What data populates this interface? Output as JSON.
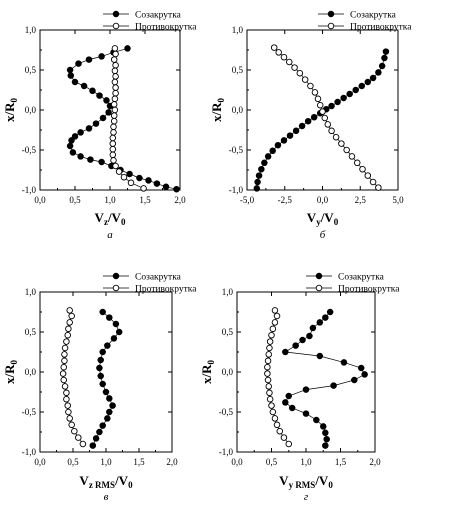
{
  "chart_data": [
    {
      "type": "scatter",
      "panel_letter": "а",
      "xlabel": {
        "main": "V",
        "sub": "z",
        "tail": "/V",
        "tail_sub": "0"
      },
      "ylabel": {
        "main": "x/R",
        "sub": "0"
      },
      "xlim": [
        0,
        2.0
      ],
      "ylim": [
        -1.0,
        1.0
      ],
      "xticks": [
        "0,0",
        "0,5",
        "1,0",
        "1,5",
        "2,0"
      ],
      "xtick_values": [
        0,
        0.5,
        1.0,
        1.5,
        2.0
      ],
      "yticks": [
        "-1,0",
        "-0,5",
        "0,0",
        "0,5",
        "1,0"
      ],
      "ytick_values": [
        -1.0,
        -0.5,
        0.0,
        0.5,
        1.0
      ],
      "legend_position": "top-right",
      "series": [
        {
          "name": "Созакрутка",
          "marker": "filled",
          "points": [
            [
              1.25,
              0.77
            ],
            [
              1.05,
              0.72
            ],
            [
              0.88,
              0.67
            ],
            [
              0.7,
              0.63
            ],
            [
              0.55,
              0.58
            ],
            [
              0.43,
              0.5
            ],
            [
              0.44,
              0.43
            ],
            [
              0.5,
              0.35
            ],
            [
              0.63,
              0.3
            ],
            [
              0.75,
              0.24
            ],
            [
              0.85,
              0.18
            ],
            [
              0.95,
              0.12
            ],
            [
              1.0,
              0.05
            ],
            [
              0.98,
              -0.03
            ],
            [
              0.9,
              -0.1
            ],
            [
              0.8,
              -0.17
            ],
            [
              0.7,
              -0.23
            ],
            [
              0.58,
              -0.28
            ],
            [
              0.5,
              -0.33
            ],
            [
              0.45,
              -0.38
            ],
            [
              0.43,
              -0.45
            ],
            [
              0.47,
              -0.53
            ],
            [
              0.58,
              -0.58
            ],
            [
              0.72,
              -0.62
            ],
            [
              0.88,
              -0.65
            ],
            [
              1.02,
              -0.7
            ],
            [
              1.15,
              -0.75
            ],
            [
              1.28,
              -0.8
            ],
            [
              1.42,
              -0.85
            ],
            [
              1.55,
              -0.88
            ],
            [
              1.67,
              -0.92
            ],
            [
              1.8,
              -0.96
            ],
            [
              1.95,
              -0.99
            ]
          ]
        },
        {
          "name": "Противокрутка",
          "marker": "open",
          "points": [
            [
              1.07,
              0.77
            ],
            [
              1.08,
              0.7
            ],
            [
              1.06,
              0.63
            ],
            [
              1.08,
              0.56
            ],
            [
              1.07,
              0.49
            ],
            [
              1.08,
              0.42
            ],
            [
              1.07,
              0.35
            ],
            [
              1.08,
              0.28
            ],
            [
              1.08,
              0.21
            ],
            [
              1.07,
              0.14
            ],
            [
              1.06,
              0.07
            ],
            [
              1.07,
              0.0
            ],
            [
              1.06,
              -0.07
            ],
            [
              1.06,
              -0.14
            ],
            [
              1.05,
              -0.21
            ],
            [
              1.05,
              -0.28
            ],
            [
              1.04,
              -0.35
            ],
            [
              1.04,
              -0.42
            ],
            [
              1.04,
              -0.49
            ],
            [
              1.04,
              -0.56
            ],
            [
              1.05,
              -0.63
            ],
            [
              1.08,
              -0.7
            ],
            [
              1.13,
              -0.77
            ],
            [
              1.2,
              -0.84
            ],
            [
              1.3,
              -0.91
            ],
            [
              1.48,
              -0.98
            ]
          ]
        }
      ]
    },
    {
      "type": "scatter",
      "panel_letter": "б",
      "xlabel": {
        "main": "V",
        "sub": "y",
        "tail": "/V",
        "tail_sub": "0"
      },
      "ylabel": {
        "main": "x/R",
        "sub": "0"
      },
      "xlim": [
        -5.0,
        5.0
      ],
      "ylim": [
        -1.0,
        1.0
      ],
      "xticks": [
        "-5,0",
        "-2,5",
        "0,0",
        "2,5",
        "5,0"
      ],
      "xtick_values": [
        -5.0,
        -2.5,
        0.0,
        2.5,
        5.0
      ],
      "yticks": [
        "-1,0",
        "-0,5",
        "0,0",
        "0,5",
        "1,0"
      ],
      "ytick_values": [
        -1.0,
        -0.5,
        0.0,
        0.5,
        1.0
      ],
      "legend_position": "top-right",
      "series": [
        {
          "name": "Созакрутка",
          "marker": "filled",
          "points": [
            [
              4.2,
              0.73
            ],
            [
              4.1,
              0.65
            ],
            [
              3.95,
              0.55
            ],
            [
              3.7,
              0.47
            ],
            [
              3.35,
              0.4
            ],
            [
              3.0,
              0.35
            ],
            [
              2.6,
              0.3
            ],
            [
              2.2,
              0.25
            ],
            [
              1.8,
              0.2
            ],
            [
              1.4,
              0.15
            ],
            [
              1.0,
              0.1
            ],
            [
              0.6,
              0.05
            ],
            [
              0.25,
              0.01
            ],
            [
              -0.15,
              -0.04
            ],
            [
              -0.55,
              -0.09
            ],
            [
              -0.95,
              -0.14
            ],
            [
              -1.35,
              -0.2
            ],
            [
              -1.75,
              -0.26
            ],
            [
              -2.15,
              -0.32
            ],
            [
              -2.55,
              -0.38
            ],
            [
              -2.95,
              -0.44
            ],
            [
              -3.3,
              -0.51
            ],
            [
              -3.6,
              -0.58
            ],
            [
              -3.85,
              -0.66
            ],
            [
              -4.05,
              -0.74
            ],
            [
              -4.2,
              -0.82
            ],
            [
              -4.3,
              -0.9
            ],
            [
              -4.35,
              -0.98
            ]
          ]
        },
        {
          "name": "Противокрутка",
          "marker": "open",
          "points": [
            [
              -3.2,
              0.78
            ],
            [
              -2.9,
              0.72
            ],
            [
              -2.55,
              0.66
            ],
            [
              -2.2,
              0.6
            ],
            [
              -1.85,
              0.53
            ],
            [
              -1.5,
              0.46
            ],
            [
              -1.15,
              0.38
            ],
            [
              -0.8,
              0.3
            ],
            [
              -0.5,
              0.22
            ],
            [
              -0.3,
              0.14
            ],
            [
              -0.15,
              0.06
            ],
            [
              0.0,
              -0.02
            ],
            [
              0.15,
              -0.1
            ],
            [
              0.35,
              -0.18
            ],
            [
              0.6,
              -0.26
            ],
            [
              0.9,
              -0.34
            ],
            [
              1.25,
              -0.42
            ],
            [
              1.6,
              -0.5
            ],
            [
              1.95,
              -0.58
            ],
            [
              2.3,
              -0.66
            ],
            [
              2.65,
              -0.74
            ],
            [
              3.0,
              -0.82
            ],
            [
              3.35,
              -0.9
            ],
            [
              3.7,
              -0.97
            ]
          ]
        }
      ]
    },
    {
      "type": "scatter",
      "panel_letter": "в",
      "xlabel": {
        "main": "V",
        "sub": "z RMS",
        "tail": "/V",
        "tail_sub": "0"
      },
      "ylabel": {
        "main": "x/R",
        "sub": "0"
      },
      "xlim": [
        0,
        2.0
      ],
      "ylim": [
        -1.0,
        1.0
      ],
      "xticks": [
        "0,0",
        "0,5",
        "1,0",
        "1,5",
        "2,0"
      ],
      "xtick_values": [
        0,
        0.5,
        1.0,
        1.5,
        2.0
      ],
      "yticks": [
        "-1,0",
        "-0,5",
        "0,0",
        "0,5",
        "1,0"
      ],
      "ytick_values": [
        -1.0,
        -0.5,
        0.0,
        0.5,
        1.0
      ],
      "legend_position": "top-right",
      "series": [
        {
          "name": "Созакрутка",
          "marker": "filled",
          "points": [
            [
              0.95,
              0.75
            ],
            [
              1.05,
              0.68
            ],
            [
              1.15,
              0.6
            ],
            [
              1.2,
              0.5
            ],
            [
              1.12,
              0.42
            ],
            [
              1.02,
              0.33
            ],
            [
              0.95,
              0.25
            ],
            [
              0.92,
              0.15
            ],
            [
              0.9,
              0.05
            ],
            [
              0.92,
              -0.05
            ],
            [
              0.95,
              -0.15
            ],
            [
              1.0,
              -0.25
            ],
            [
              1.05,
              -0.33
            ],
            [
              1.1,
              -0.42
            ],
            [
              1.05,
              -0.5
            ],
            [
              1.02,
              -0.58
            ],
            [
              0.95,
              -0.67
            ],
            [
              0.9,
              -0.75
            ],
            [
              0.85,
              -0.83
            ],
            [
              0.8,
              -0.92
            ]
          ]
        },
        {
          "name": "Противокрутка",
          "marker": "open",
          "points": [
            [
              0.45,
              0.77
            ],
            [
              0.48,
              0.7
            ],
            [
              0.45,
              0.62
            ],
            [
              0.43,
              0.54
            ],
            [
              0.42,
              0.46
            ],
            [
              0.4,
              0.38
            ],
            [
              0.38,
              0.3
            ],
            [
              0.37,
              0.22
            ],
            [
              0.37,
              0.14
            ],
            [
              0.36,
              0.06
            ],
            [
              0.35,
              -0.02
            ],
            [
              0.36,
              -0.1
            ],
            [
              0.38,
              -0.18
            ],
            [
              0.4,
              -0.26
            ],
            [
              0.4,
              -0.34
            ],
            [
              0.42,
              -0.42
            ],
            [
              0.43,
              -0.5
            ],
            [
              0.45,
              -0.58
            ],
            [
              0.48,
              -0.66
            ],
            [
              0.52,
              -0.74
            ],
            [
              0.58,
              -0.82
            ],
            [
              0.65,
              -0.9
            ]
          ]
        }
      ]
    },
    {
      "type": "scatter",
      "panel_letter": "г",
      "xlabel": {
        "main": "V",
        "sub": "y RMS",
        "tail": "/V",
        "tail_sub": "0"
      },
      "ylabel": {
        "main": "x/R",
        "sub": "0"
      },
      "xlim": [
        0,
        2.0
      ],
      "ylim": [
        -1.0,
        1.0
      ],
      "xticks": [
        "0,0",
        "0,5",
        "1,0",
        "1,5",
        "2,0"
      ],
      "xtick_values": [
        0,
        0.5,
        1.0,
        1.5,
        2.0
      ],
      "yticks": [
        "-1,0",
        "-0,5",
        "0,0",
        "0,5",
        "1,0"
      ],
      "ytick_values": [
        -1.0,
        -0.5,
        0.0,
        0.5,
        1.0
      ],
      "legend_position": "top-right",
      "series": [
        {
          "name": "Созакрутка",
          "marker": "filled",
          "points": [
            [
              1.35,
              0.75
            ],
            [
              1.28,
              0.68
            ],
            [
              1.2,
              0.62
            ],
            [
              1.1,
              0.55
            ],
            [
              1.05,
              0.45
            ],
            [
              0.95,
              0.4
            ],
            [
              0.85,
              0.33
            ],
            [
              0.7,
              0.25
            ],
            [
              1.2,
              0.2
            ],
            [
              1.55,
              0.12
            ],
            [
              1.8,
              0.05
            ],
            [
              1.85,
              -0.03
            ],
            [
              1.7,
              -0.1
            ],
            [
              1.4,
              -0.17
            ],
            [
              1.0,
              -0.22
            ],
            [
              0.75,
              -0.3
            ],
            [
              0.7,
              -0.38
            ],
            [
              0.8,
              -0.45
            ],
            [
              1.0,
              -0.52
            ],
            [
              1.15,
              -0.6
            ],
            [
              1.25,
              -0.68
            ],
            [
              1.28,
              -0.76
            ],
            [
              1.3,
              -0.84
            ],
            [
              1.28,
              -0.92
            ]
          ]
        },
        {
          "name": "Противокрутка",
          "marker": "open",
          "points": [
            [
              0.55,
              0.77
            ],
            [
              0.58,
              0.7
            ],
            [
              0.55,
              0.62
            ],
            [
              0.52,
              0.54
            ],
            [
              0.5,
              0.46
            ],
            [
              0.48,
              0.38
            ],
            [
              0.47,
              0.3
            ],
            [
              0.46,
              0.22
            ],
            [
              0.45,
              0.14
            ],
            [
              0.44,
              0.06
            ],
            [
              0.44,
              -0.02
            ],
            [
              0.45,
              -0.1
            ],
            [
              0.46,
              -0.18
            ],
            [
              0.47,
              -0.26
            ],
            [
              0.48,
              -0.34
            ],
            [
              0.5,
              -0.42
            ],
            [
              0.52,
              -0.5
            ],
            [
              0.55,
              -0.58
            ],
            [
              0.58,
              -0.66
            ],
            [
              0.62,
              -0.74
            ],
            [
              0.68,
              -0.82
            ],
            [
              0.75,
              -0.9
            ]
          ]
        }
      ]
    }
  ]
}
